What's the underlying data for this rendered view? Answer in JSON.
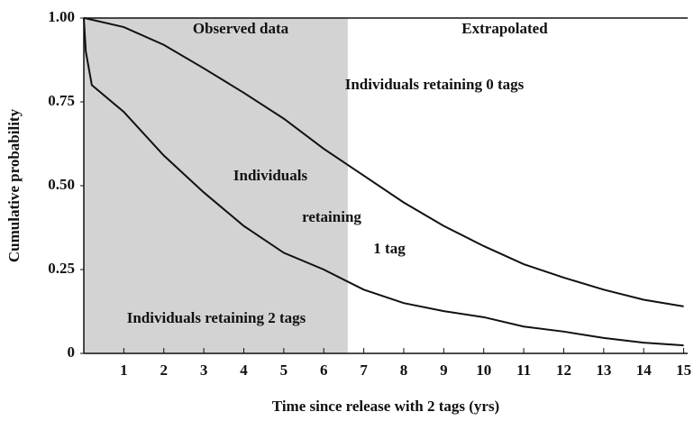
{
  "chart_data": {
    "type": "line",
    "x_label": "Time since release with 2 tags (yrs)",
    "y_label": "Cumulative probability",
    "x": [
      0,
      0.05,
      0.2,
      1,
      2,
      3,
      4,
      5,
      6,
      7,
      8,
      9,
      10,
      11,
      12,
      13,
      14,
      15
    ],
    "series": [
      {
        "color": "#111111",
        "values": [
          1.0,
          0.999,
          0.995,
          0.973,
          0.92,
          0.85,
          0.777,
          0.7,
          0.61,
          0.53,
          0.45,
          0.38,
          0.32,
          0.266,
          0.226,
          0.19,
          0.16,
          0.14
        ]
      },
      {
        "color": "#111111",
        "values": [
          1.0,
          0.9,
          0.8,
          0.72,
          0.59,
          0.48,
          0.38,
          0.3,
          0.25,
          0.19,
          0.15,
          0.126,
          0.108,
          0.08,
          0.065,
          0.046,
          0.032,
          0.024
        ]
      }
    ],
    "xlim": [
      0,
      15.1
    ],
    "ylim": [
      0,
      1
    ],
    "xticks": [
      1,
      2,
      3,
      4,
      5,
      6,
      7,
      8,
      9,
      10,
      11,
      12,
      13,
      14,
      15
    ],
    "yticks": [
      0,
      {
        "value": 0.25,
        "label": "0.25"
      },
      {
        "value": 0.5,
        "label": "0.50"
      },
      {
        "value": 0.75,
        "label": "0.75"
      },
      {
        "value": 1,
        "label": "1.00"
      }
    ],
    "shaded_region": [
      0,
      6.6
    ],
    "shade_color": "#d3d3d3",
    "annotations": [
      "Observed data",
      "Extrapolated",
      "Individuals retaining 0 tags",
      "Individuals",
      "retaining",
      "1 tag",
      "Individuals retaining 2 tags"
    ]
  }
}
